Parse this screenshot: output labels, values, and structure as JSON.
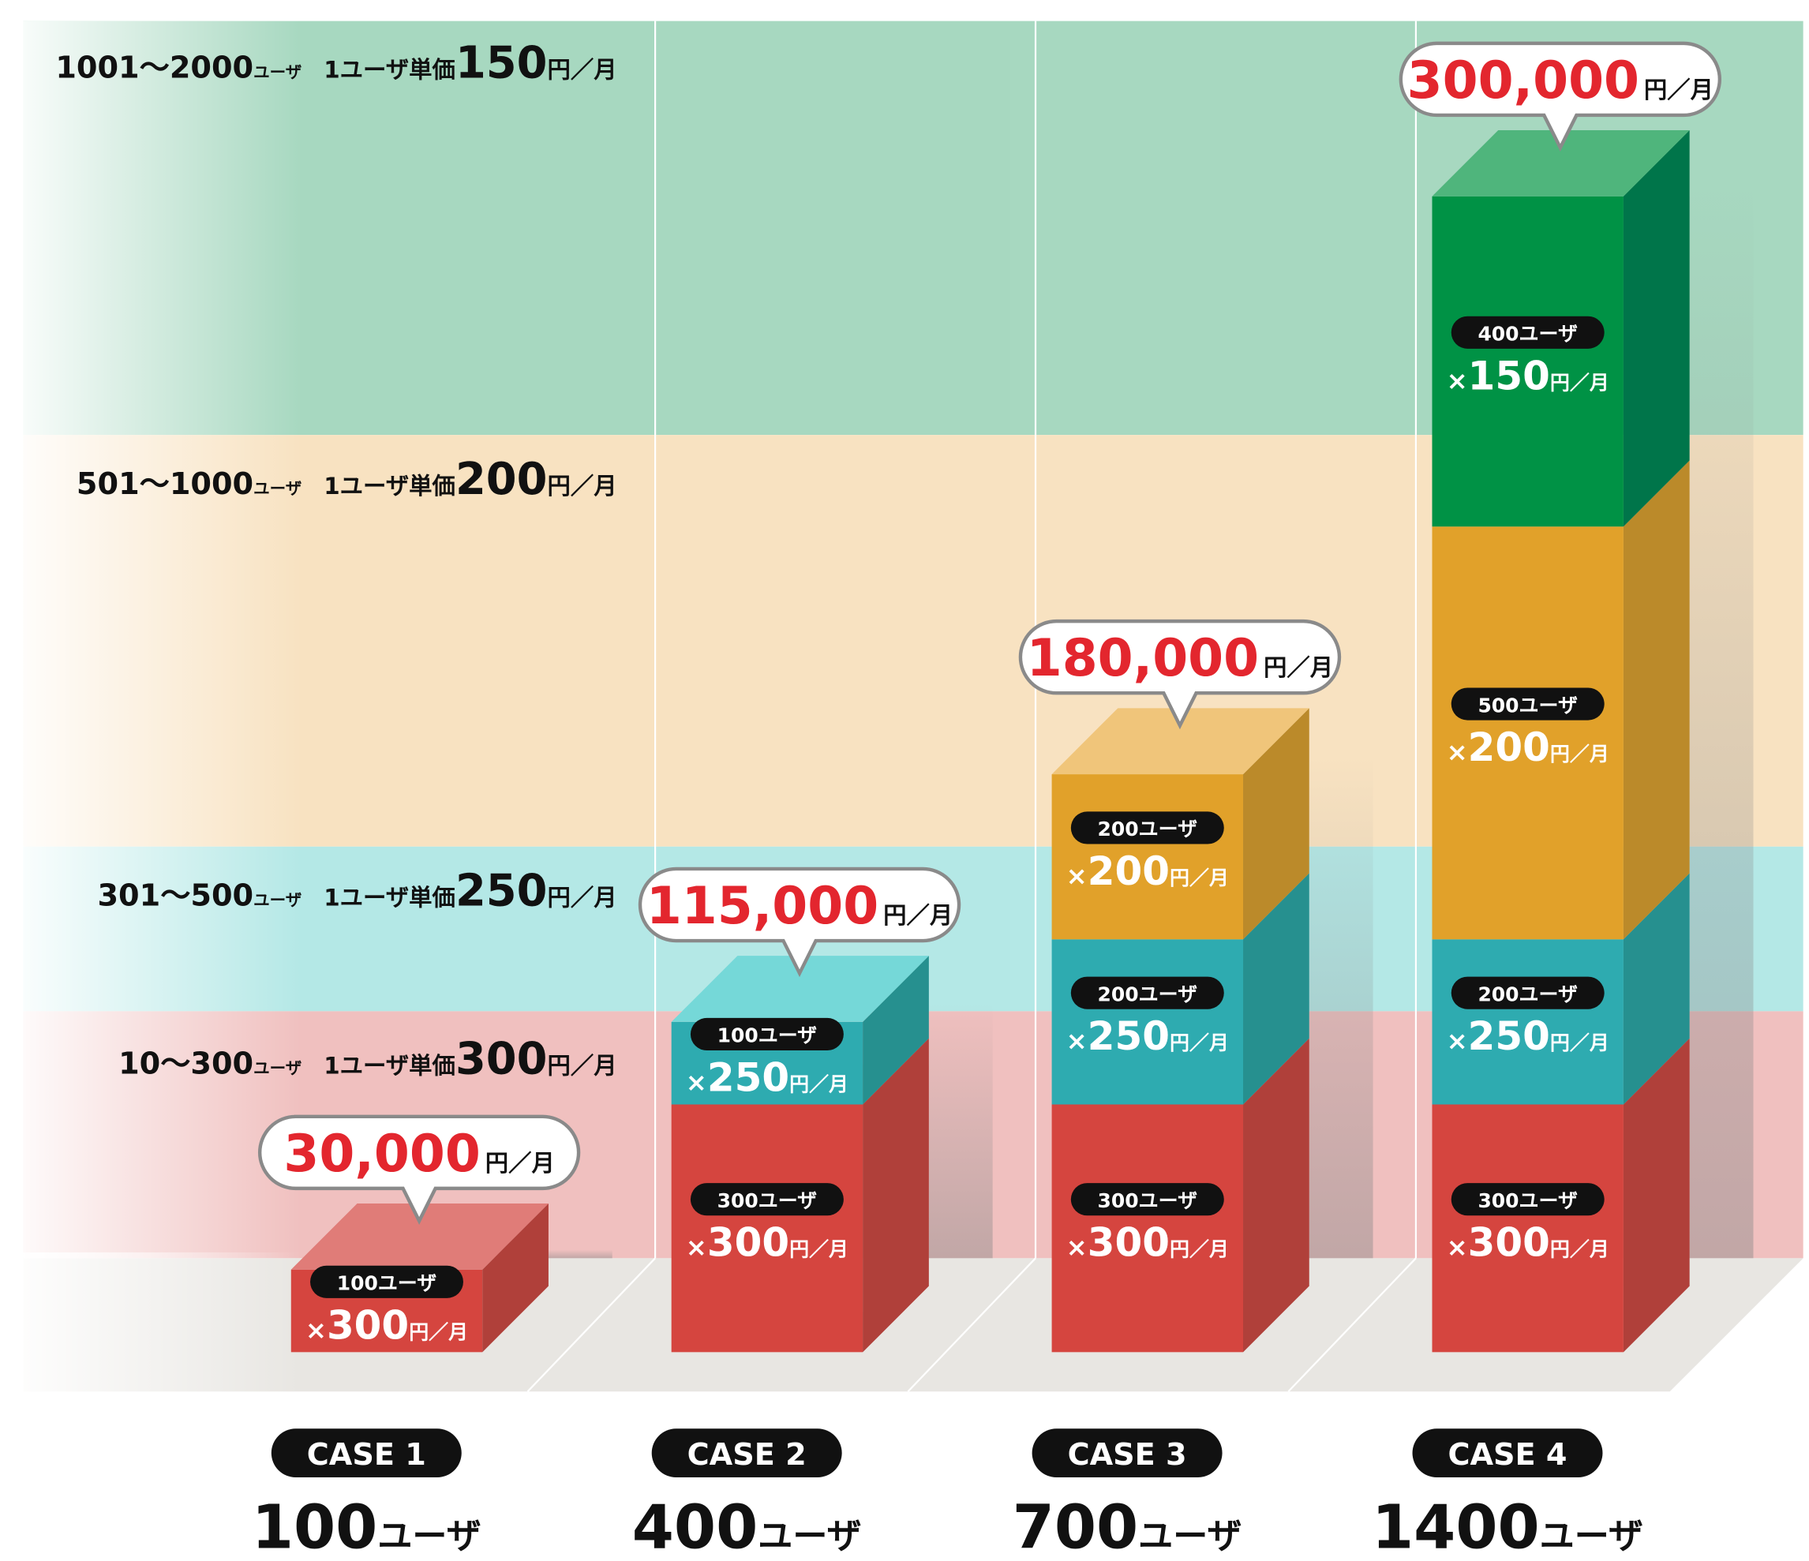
{
  "tiers": [
    {
      "range": "1001～2000",
      "unit": "ユーザ",
      "price_label": "1ユーザ単価",
      "price": "150",
      "price_unit": "円／月",
      "color": "#a7d8c0"
    },
    {
      "range": "501～1000",
      "unit": "ユーザ",
      "price_label": "1ユーザ単価",
      "price": "200",
      "price_unit": "円／月",
      "color": "#f8e2c1"
    },
    {
      "range": "301～500",
      "unit": "ユーザ",
      "price_label": "1ユーザ単価",
      "price": "250",
      "price_unit": "円／月",
      "color": "#b4e8e6"
    },
    {
      "range": "10～300",
      "unit": "ユーザ",
      "price_label": "1ユーザ単価",
      "price": "300",
      "price_unit": "円／月",
      "color": "#f0c0bf"
    }
  ],
  "segment_colors": {
    "red": {
      "front": "#d5453f",
      "side": "#b0403a",
      "top": "#e07c78"
    },
    "teal": {
      "front": "#2eabb0",
      "side": "#26908f",
      "top": "#75d8d8"
    },
    "orange": {
      "front": "#e1a12a",
      "side": "#bb8a2a",
      "top": "#f0c57a"
    },
    "green": {
      "front": "#009245",
      "side": "#00754a",
      "top": "#4fb57c"
    }
  },
  "accent_red": "#e3262e",
  "cases": [
    {
      "label": "CASE 1",
      "users": "100",
      "users_unit": "ユーザ",
      "total": "30,000",
      "total_unit": "円／月",
      "segments": [
        {
          "tier": "red",
          "count": 100,
          "users_label": "100ユーザ",
          "price": "300",
          "price_unit": "円／月"
        }
      ]
    },
    {
      "label": "CASE 2",
      "users": "400",
      "users_unit": "ユーザ",
      "total": "115,000",
      "total_unit": "円／月",
      "segments": [
        {
          "tier": "red",
          "count": 300,
          "users_label": "300ユーザ",
          "price": "300",
          "price_unit": "円／月"
        },
        {
          "tier": "teal",
          "count": 100,
          "users_label": "100ユーザ",
          "price": "250",
          "price_unit": "円／月"
        }
      ]
    },
    {
      "label": "CASE 3",
      "users": "700",
      "users_unit": "ユーザ",
      "total": "180,000",
      "total_unit": "円／月",
      "segments": [
        {
          "tier": "red",
          "count": 300,
          "users_label": "300ユーザ",
          "price": "300",
          "price_unit": "円／月"
        },
        {
          "tier": "teal",
          "count": 200,
          "users_label": "200ユーザ",
          "price": "250",
          "price_unit": "円／月"
        },
        {
          "tier": "orange",
          "count": 200,
          "users_label": "200ユーザ",
          "price": "200",
          "price_unit": "円／月"
        }
      ]
    },
    {
      "label": "CASE 4",
      "users": "1400",
      "users_unit": "ユーザ",
      "total": "300,000",
      "total_unit": "円／月",
      "segments": [
        {
          "tier": "red",
          "count": 300,
          "users_label": "300ユーザ",
          "price": "300",
          "price_unit": "円／月"
        },
        {
          "tier": "teal",
          "count": 200,
          "users_label": "200ユーザ",
          "price": "250",
          "price_unit": "円／月"
        },
        {
          "tier": "orange",
          "count": 500,
          "users_label": "500ユーザ",
          "price": "200",
          "price_unit": "円／月"
        },
        {
          "tier": "green",
          "count": 400,
          "users_label": "400ユーザ",
          "price": "150",
          "price_unit": "円／月"
        }
      ]
    }
  ],
  "chart_data": {
    "type": "bar",
    "stacked": true,
    "categories": [
      "CASE 1",
      "CASE 2",
      "CASE 3",
      "CASE 4"
    ],
    "series": [
      {
        "name": "10～300ユーザ 1ユーザ単価 300円／月",
        "values": [
          100,
          300,
          300,
          300
        ]
      },
      {
        "name": "301～500ユーザ 1ユーザ単価 250円／月",
        "values": [
          0,
          100,
          200,
          200
        ]
      },
      {
        "name": "501～1000ユーザ 1ユーザ単価 200円／月",
        "values": [
          0,
          0,
          200,
          500
        ]
      },
      {
        "name": "1001～2000ユーザ 1ユーザ単価 150円／月",
        "values": [
          0,
          0,
          0,
          400
        ]
      }
    ],
    "totals_yen_per_month": [
      30000,
      115000,
      180000,
      300000
    ],
    "total_users": [
      100,
      400,
      700,
      1400
    ],
    "legend": "left"
  }
}
